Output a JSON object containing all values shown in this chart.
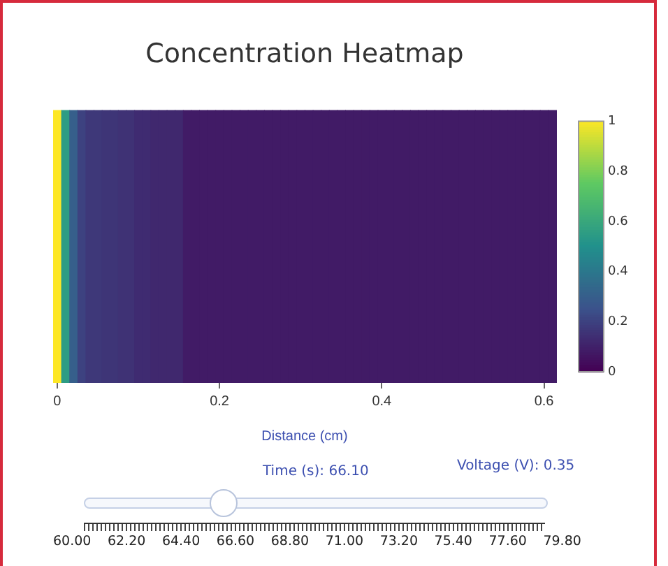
{
  "chart_data": {
    "type": "heatmap",
    "title": "Concentration Heatmap",
    "xlabel": "Distance (cm)",
    "categories": [
      "0",
      null,
      null,
      null,
      null,
      null,
      null,
      null,
      null,
      null,
      null,
      null,
      null,
      null,
      null,
      null,
      null,
      null,
      null,
      null,
      "0.2",
      null,
      null,
      null,
      null,
      null,
      null,
      null,
      null,
      null,
      null,
      null,
      null,
      null,
      null,
      null,
      null,
      null,
      null,
      null,
      "0.4",
      null,
      null,
      null,
      null,
      null,
      null,
      null,
      null,
      null,
      null,
      null,
      null,
      null,
      null,
      null,
      null,
      null,
      null,
      null,
      "0.6",
      null
    ],
    "y_categories": [
      null
    ],
    "cells": [
      [
        1,
        0.55,
        0.3,
        0.2,
        0.17,
        0.17,
        0.16,
        0.16,
        0.15,
        0.15,
        0.13,
        0.13,
        0.12,
        0.12,
        0.12,
        0.12,
        0.08,
        0.08,
        0.08,
        0.08,
        0.08,
        0.08,
        0.08,
        0.08,
        0.08,
        0.08,
        0.08,
        0.08,
        0.08,
        0.08,
        0.08,
        0.08,
        0.08,
        0.08,
        0.08,
        0.08,
        0.08,
        0.08,
        0.08,
        0.08,
        0.08,
        0.08,
        0.08,
        0.08,
        0.08,
        0.08,
        0.08,
        0.08,
        0.08,
        0.08,
        0.08,
        0.08,
        0.08,
        0.08,
        0.08,
        0.08,
        0.08,
        0.08,
        0.08,
        0.08,
        0.08,
        0.08
      ]
    ],
    "clim": [
      0,
      1
    ],
    "cticks": [
      0,
      0.2,
      0.4,
      0.6,
      0.8,
      1
    ],
    "annotations": [
      "Time (s): 66.10",
      "Voltage (V):  0.35",
      "60.00",
      "62.20",
      "64.40",
      "66.60",
      "68.80",
      "71.00",
      "73.20",
      "75.40",
      "77.60",
      "79.80"
    ]
  }
}
